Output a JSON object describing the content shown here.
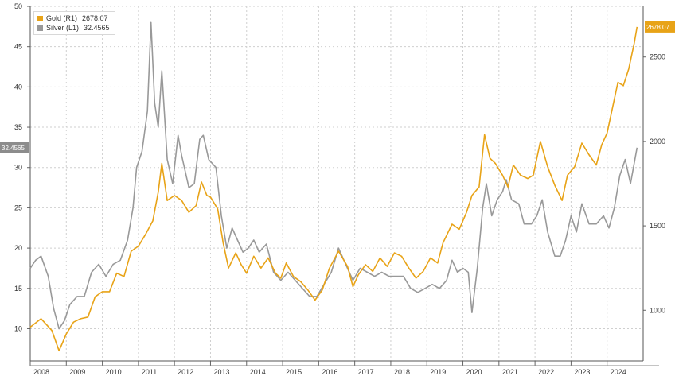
{
  "chart_data": {
    "type": "line",
    "title": "",
    "xlabel": "",
    "x_ticks": [
      "2008",
      "2009",
      "2010",
      "2011",
      "2012",
      "2013",
      "2014",
      "2015",
      "2016",
      "2017",
      "2018",
      "2019",
      "2020",
      "2021",
      "2022",
      "2023",
      "2024"
    ],
    "y_left": {
      "label": "",
      "range": [
        6,
        50
      ],
      "ticks": [
        10,
        15,
        20,
        25,
        30,
        35,
        40,
        45,
        50
      ]
    },
    "y_right": {
      "label": "",
      "range": [
        700,
        2800
      ],
      "ticks": [
        1000,
        1500,
        2000,
        2500
      ]
    },
    "grid": true,
    "legend_position": "top-left",
    "series": [
      {
        "name": "Gold (R1)",
        "last_value": "2678.07",
        "axis": "right",
        "color": "#e8a317",
        "points": [
          [
            2008.0,
            900
          ],
          [
            2008.3,
            950
          ],
          [
            2008.6,
            880
          ],
          [
            2008.8,
            760
          ],
          [
            2009.0,
            860
          ],
          [
            2009.2,
            930
          ],
          [
            2009.4,
            950
          ],
          [
            2009.6,
            960
          ],
          [
            2009.8,
            1080
          ],
          [
            2010.0,
            1110
          ],
          [
            2010.2,
            1110
          ],
          [
            2010.4,
            1220
          ],
          [
            2010.6,
            1200
          ],
          [
            2010.8,
            1350
          ],
          [
            2011.0,
            1380
          ],
          [
            2011.2,
            1450
          ],
          [
            2011.4,
            1530
          ],
          [
            2011.55,
            1700
          ],
          [
            2011.65,
            1870
          ],
          [
            2011.8,
            1650
          ],
          [
            2012.0,
            1680
          ],
          [
            2012.2,
            1650
          ],
          [
            2012.4,
            1580
          ],
          [
            2012.6,
            1620
          ],
          [
            2012.75,
            1760
          ],
          [
            2012.9,
            1680
          ],
          [
            2013.0,
            1670
          ],
          [
            2013.2,
            1600
          ],
          [
            2013.35,
            1400
          ],
          [
            2013.5,
            1250
          ],
          [
            2013.7,
            1340
          ],
          [
            2013.85,
            1270
          ],
          [
            2014.0,
            1220
          ],
          [
            2014.2,
            1320
          ],
          [
            2014.4,
            1250
          ],
          [
            2014.6,
            1310
          ],
          [
            2014.8,
            1220
          ],
          [
            2014.95,
            1190
          ],
          [
            2015.1,
            1280
          ],
          [
            2015.3,
            1200
          ],
          [
            2015.5,
            1170
          ],
          [
            2015.7,
            1120
          ],
          [
            2015.9,
            1060
          ],
          [
            2016.1,
            1120
          ],
          [
            2016.3,
            1250
          ],
          [
            2016.55,
            1350
          ],
          [
            2016.8,
            1260
          ],
          [
            2016.95,
            1140
          ],
          [
            2017.1,
            1210
          ],
          [
            2017.3,
            1270
          ],
          [
            2017.5,
            1230
          ],
          [
            2017.7,
            1310
          ],
          [
            2017.9,
            1260
          ],
          [
            2018.1,
            1340
          ],
          [
            2018.3,
            1320
          ],
          [
            2018.5,
            1250
          ],
          [
            2018.7,
            1190
          ],
          [
            2018.9,
            1230
          ],
          [
            2019.1,
            1310
          ],
          [
            2019.3,
            1280
          ],
          [
            2019.45,
            1400
          ],
          [
            2019.7,
            1510
          ],
          [
            2019.9,
            1480
          ],
          [
            2020.1,
            1580
          ],
          [
            2020.25,
            1680
          ],
          [
            2020.45,
            1730
          ],
          [
            2020.6,
            2040
          ],
          [
            2020.75,
            1900
          ],
          [
            2020.9,
            1870
          ],
          [
            2021.1,
            1800
          ],
          [
            2021.25,
            1730
          ],
          [
            2021.4,
            1860
          ],
          [
            2021.6,
            1800
          ],
          [
            2021.8,
            1780
          ],
          [
            2021.95,
            1800
          ],
          [
            2022.15,
            2000
          ],
          [
            2022.35,
            1850
          ],
          [
            2022.55,
            1740
          ],
          [
            2022.75,
            1650
          ],
          [
            2022.9,
            1800
          ],
          [
            2023.1,
            1850
          ],
          [
            2023.3,
            1990
          ],
          [
            2023.5,
            1920
          ],
          [
            2023.7,
            1860
          ],
          [
            2023.85,
            1980
          ],
          [
            2024.0,
            2050
          ],
          [
            2024.15,
            2200
          ],
          [
            2024.3,
            2350
          ],
          [
            2024.45,
            2330
          ],
          [
            2024.6,
            2430
          ],
          [
            2024.75,
            2580
          ],
          [
            2024.83,
            2678
          ]
        ]
      },
      {
        "name": "Silver (L1)",
        "last_value": "32.4565",
        "axis": "left",
        "color": "#999999",
        "points": [
          [
            2008.0,
            17.5
          ],
          [
            2008.15,
            18.5
          ],
          [
            2008.3,
            19
          ],
          [
            2008.5,
            16.5
          ],
          [
            2008.65,
            12.5
          ],
          [
            2008.8,
            10
          ],
          [
            2008.95,
            11
          ],
          [
            2009.1,
            13
          ],
          [
            2009.3,
            14
          ],
          [
            2009.5,
            14
          ],
          [
            2009.7,
            17
          ],
          [
            2009.9,
            18
          ],
          [
            2010.1,
            16.5
          ],
          [
            2010.3,
            18
          ],
          [
            2010.5,
            18.5
          ],
          [
            2010.7,
            21
          ],
          [
            2010.85,
            25
          ],
          [
            2010.95,
            30
          ],
          [
            2011.1,
            32
          ],
          [
            2011.25,
            37
          ],
          [
            2011.35,
            48
          ],
          [
            2011.45,
            38
          ],
          [
            2011.55,
            35
          ],
          [
            2011.65,
            42
          ],
          [
            2011.8,
            31
          ],
          [
            2011.95,
            28
          ],
          [
            2012.1,
            34
          ],
          [
            2012.2,
            31.5
          ],
          [
            2012.4,
            27.5
          ],
          [
            2012.55,
            28
          ],
          [
            2012.7,
            33.5
          ],
          [
            2012.8,
            34
          ],
          [
            2012.95,
            31
          ],
          [
            2013.15,
            30
          ],
          [
            2013.3,
            24
          ],
          [
            2013.45,
            20
          ],
          [
            2013.6,
            22.5
          ],
          [
            2013.75,
            21
          ],
          [
            2013.9,
            19.5
          ],
          [
            2014.05,
            20
          ],
          [
            2014.2,
            21
          ],
          [
            2014.35,
            19.5
          ],
          [
            2014.55,
            20.5
          ],
          [
            2014.75,
            17
          ],
          [
            2014.95,
            16
          ],
          [
            2015.15,
            17
          ],
          [
            2015.35,
            16
          ],
          [
            2015.55,
            15
          ],
          [
            2015.75,
            14
          ],
          [
            2015.95,
            14
          ],
          [
            2016.15,
            15.5
          ],
          [
            2016.35,
            17
          ],
          [
            2016.55,
            20
          ],
          [
            2016.75,
            18
          ],
          [
            2016.95,
            16
          ],
          [
            2017.15,
            17.5
          ],
          [
            2017.35,
            17
          ],
          [
            2017.55,
            16.5
          ],
          [
            2017.75,
            17
          ],
          [
            2017.95,
            16.5
          ],
          [
            2018.15,
            16.5
          ],
          [
            2018.35,
            16.5
          ],
          [
            2018.55,
            15
          ],
          [
            2018.75,
            14.5
          ],
          [
            2018.95,
            15
          ],
          [
            2019.15,
            15.5
          ],
          [
            2019.35,
            15
          ],
          [
            2019.55,
            16
          ],
          [
            2019.7,
            18.5
          ],
          [
            2019.85,
            17
          ],
          [
            2020.0,
            17.5
          ],
          [
            2020.15,
            17
          ],
          [
            2020.25,
            12
          ],
          [
            2020.4,
            17.5
          ],
          [
            2020.55,
            25
          ],
          [
            2020.65,
            28
          ],
          [
            2020.8,
            24
          ],
          [
            2020.95,
            26
          ],
          [
            2021.1,
            27
          ],
          [
            2021.2,
            28.5
          ],
          [
            2021.35,
            26
          ],
          [
            2021.55,
            25.5
          ],
          [
            2021.7,
            23
          ],
          [
            2021.9,
            23
          ],
          [
            2022.05,
            24
          ],
          [
            2022.2,
            26
          ],
          [
            2022.35,
            22
          ],
          [
            2022.55,
            19
          ],
          [
            2022.7,
            19
          ],
          [
            2022.85,
            21
          ],
          [
            2023.0,
            24
          ],
          [
            2023.15,
            22
          ],
          [
            2023.3,
            25.5
          ],
          [
            2023.5,
            23
          ],
          [
            2023.7,
            23
          ],
          [
            2023.9,
            24
          ],
          [
            2024.05,
            22.5
          ],
          [
            2024.2,
            25
          ],
          [
            2024.35,
            29
          ],
          [
            2024.5,
            31
          ],
          [
            2024.65,
            28
          ],
          [
            2024.83,
            32.4565
          ]
        ]
      }
    ],
    "last_value_labels": {
      "left": "32.4565",
      "right": "2678.07"
    }
  }
}
